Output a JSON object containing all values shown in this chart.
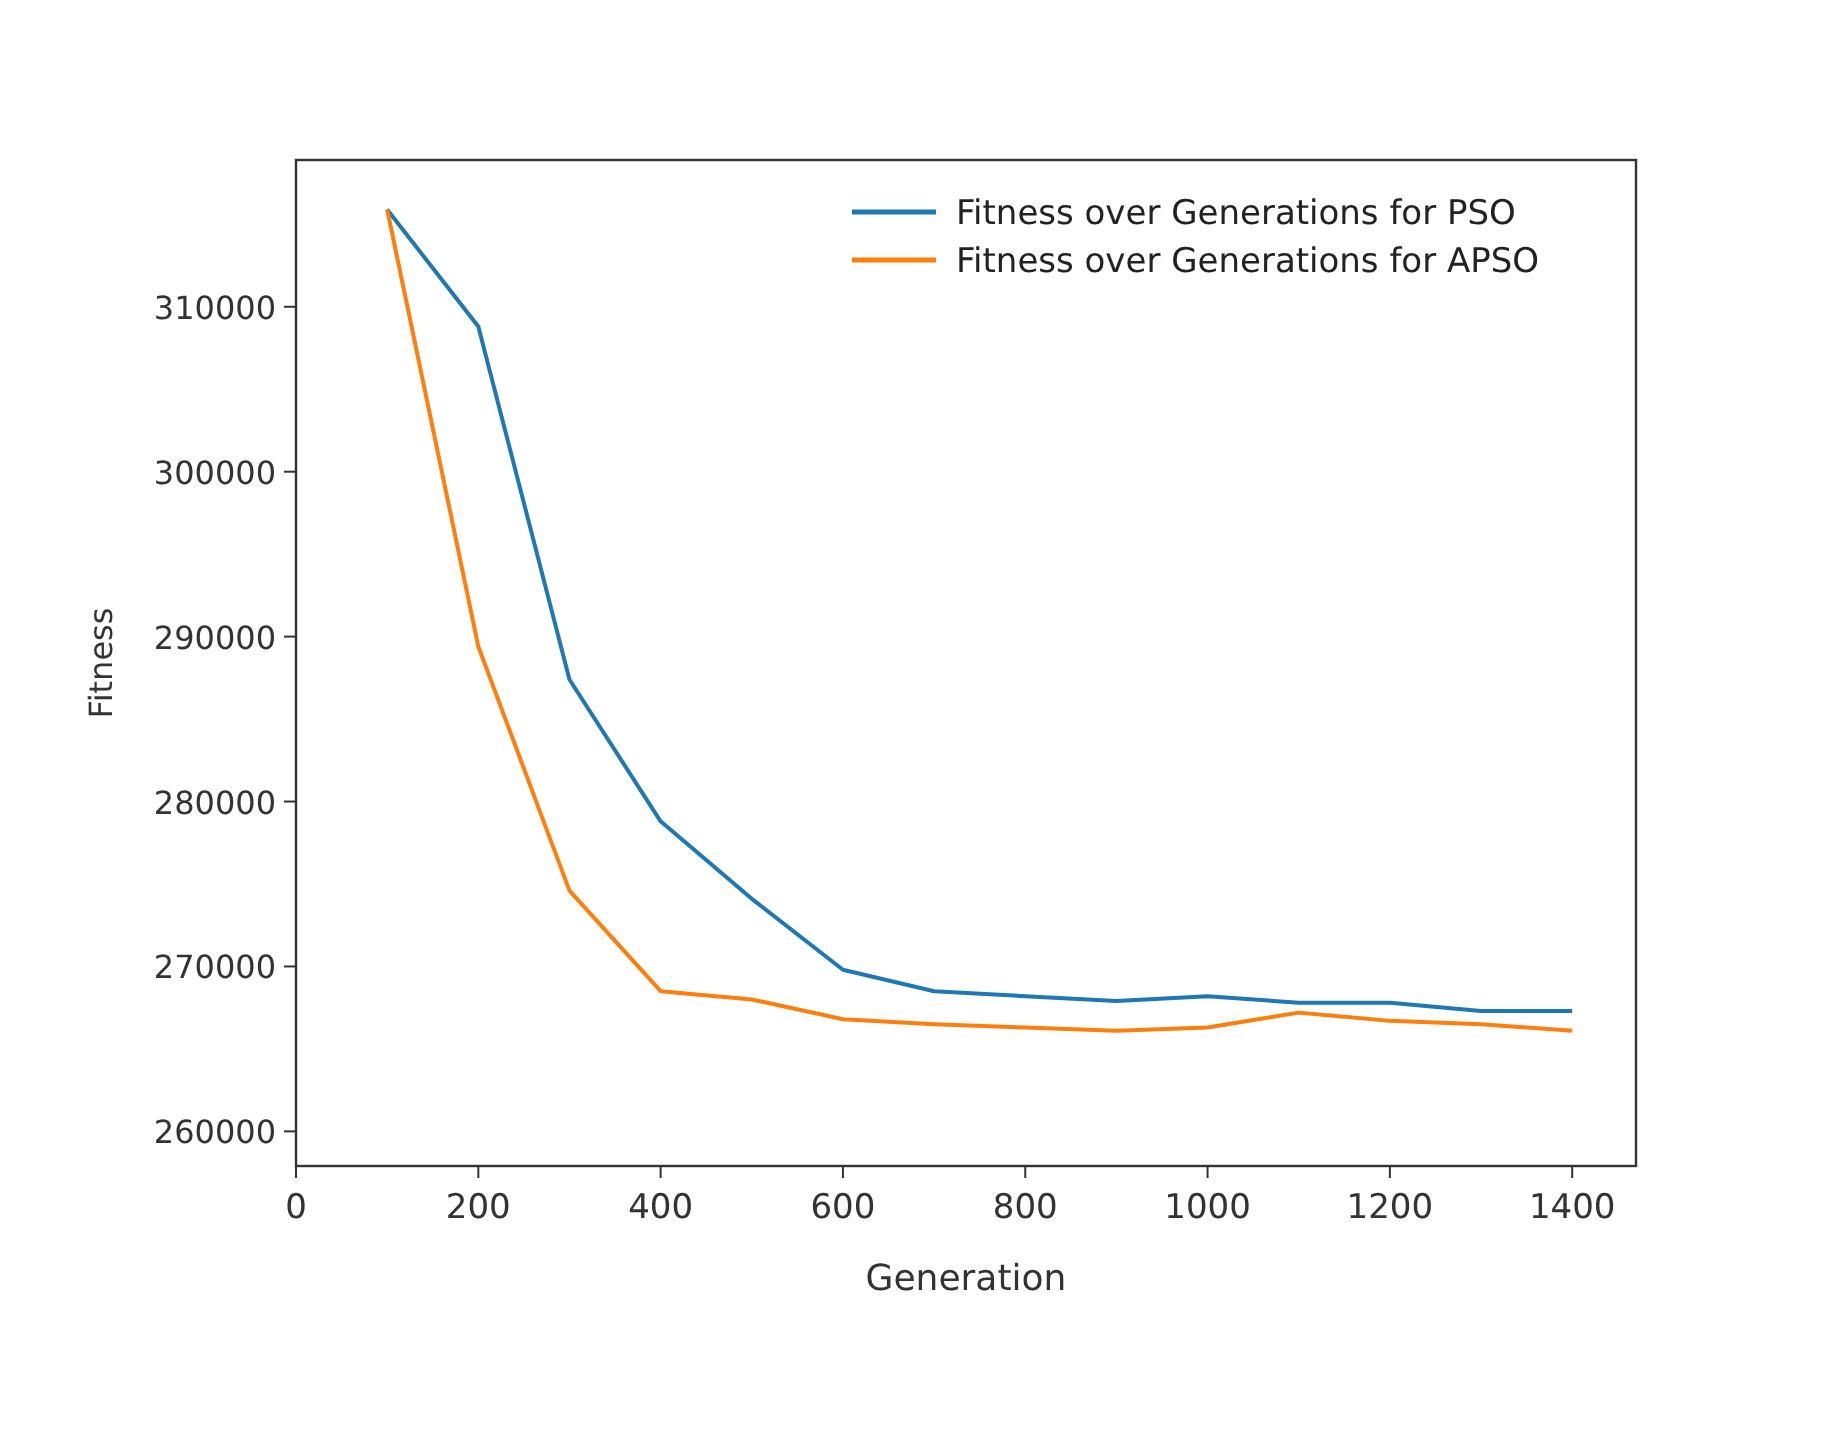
{
  "chart_data": {
    "type": "line",
    "xlabel": "Generation",
    "ylabel": "Fitness",
    "x": [
      100,
      200,
      300,
      400,
      500,
      600,
      700,
      800,
      900,
      1000,
      1100,
      1200,
      1300,
      1400
    ],
    "xlim": [
      0,
      1470
    ],
    "xticks": [
      0,
      200,
      400,
      600,
      800,
      1000,
      1200,
      1400
    ],
    "ylim": [
      257900,
      318900
    ],
    "yticks": [
      260000,
      270000,
      280000,
      290000,
      300000,
      310000
    ],
    "series": [
      {
        "name": "Fitness over Generations for PSO",
        "color": "#1f77b4",
        "values": [
          315900,
          308800,
          287400,
          278800,
          274100,
          269800,
          268500,
          268200,
          267900,
          268200,
          267800,
          267800,
          267300,
          267300
        ]
      },
      {
        "name": "Fitness over Generations for APSO",
        "color": "#ff7f0e",
        "values": [
          315900,
          289400,
          274600,
          268500,
          268000,
          266800,
          266500,
          266300,
          266100,
          266300,
          267200,
          266700,
          266500,
          266100
        ]
      }
    ],
    "legend": "top right",
    "grid": false,
    "marker": "none",
    "line_style": "solid"
  }
}
